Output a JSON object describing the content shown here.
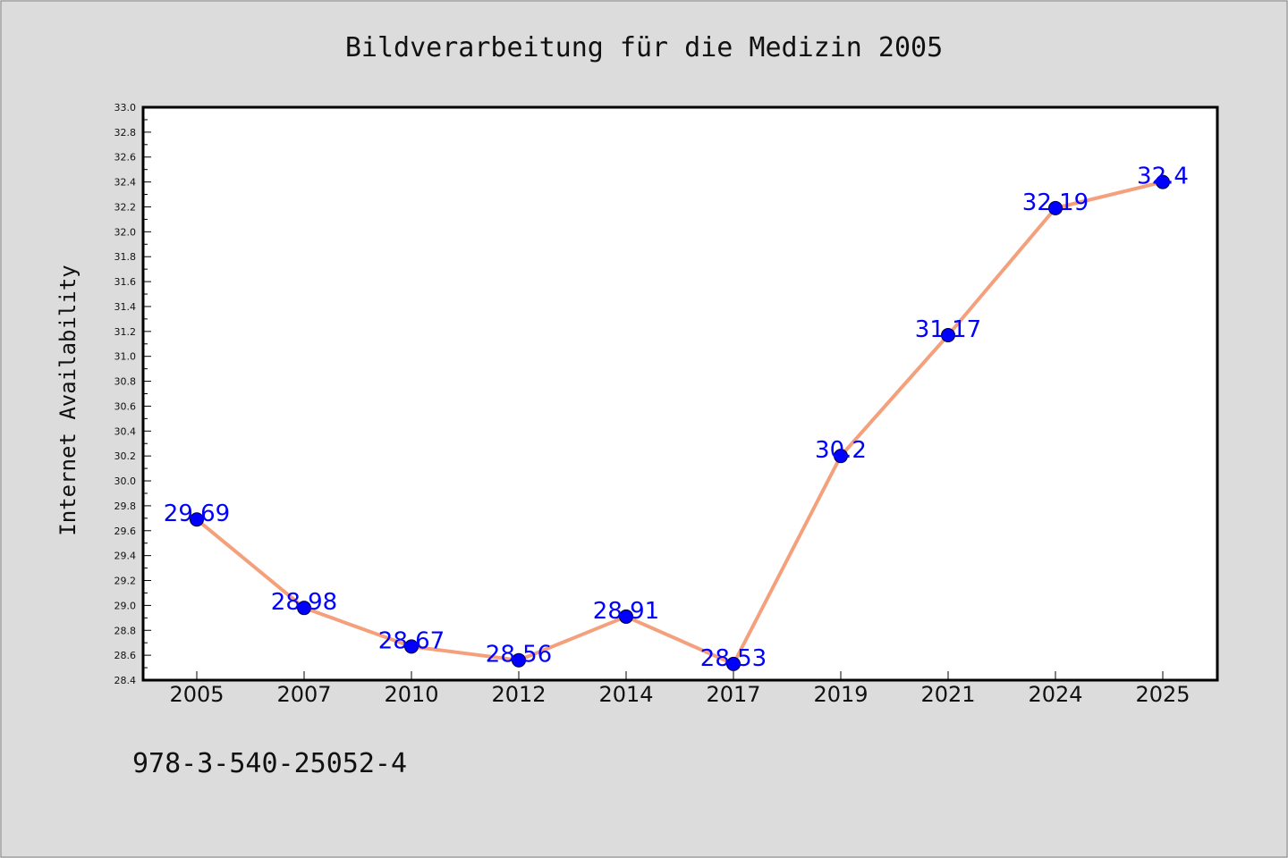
{
  "chart_data": {
    "type": "line",
    "title": "Bildverarbeitung für die Medizin 2005",
    "ylabel": "Internet Availability",
    "xlabel": "",
    "footnote": "978-3-540-25052-4",
    "categories": [
      "2005",
      "2007",
      "2010",
      "2012",
      "2014",
      "2017",
      "2019",
      "2021",
      "2024",
      "2025"
    ],
    "values": [
      29.69,
      28.98,
      28.67,
      28.56,
      28.91,
      28.53,
      30.2,
      31.17,
      32.19,
      32.4
    ],
    "data_labels": [
      "29.69",
      "28.98",
      "28.67",
      "28.56",
      "28.91",
      "28.53",
      "30.2",
      "31.17",
      "32.19",
      "32.4"
    ],
    "ylim": [
      28.4,
      33.0
    ],
    "yticks": [
      "28.4",
      "28.6",
      "28.8",
      "29.0",
      "29.2",
      "29.4",
      "29.6",
      "29.8",
      "30.0",
      "30.2",
      "30.4",
      "30.6",
      "30.8",
      "31.0",
      "31.2",
      "31.4",
      "31.6",
      "31.8",
      "32.0",
      "32.2",
      "32.4",
      "32.6",
      "32.8",
      "33.0"
    ],
    "grid": false,
    "colors": {
      "line": "#f4a07c",
      "marker": "#0000ff",
      "label": "#0000ff",
      "background": "#dcdcdc",
      "plot_background": "#ffffff"
    }
  }
}
